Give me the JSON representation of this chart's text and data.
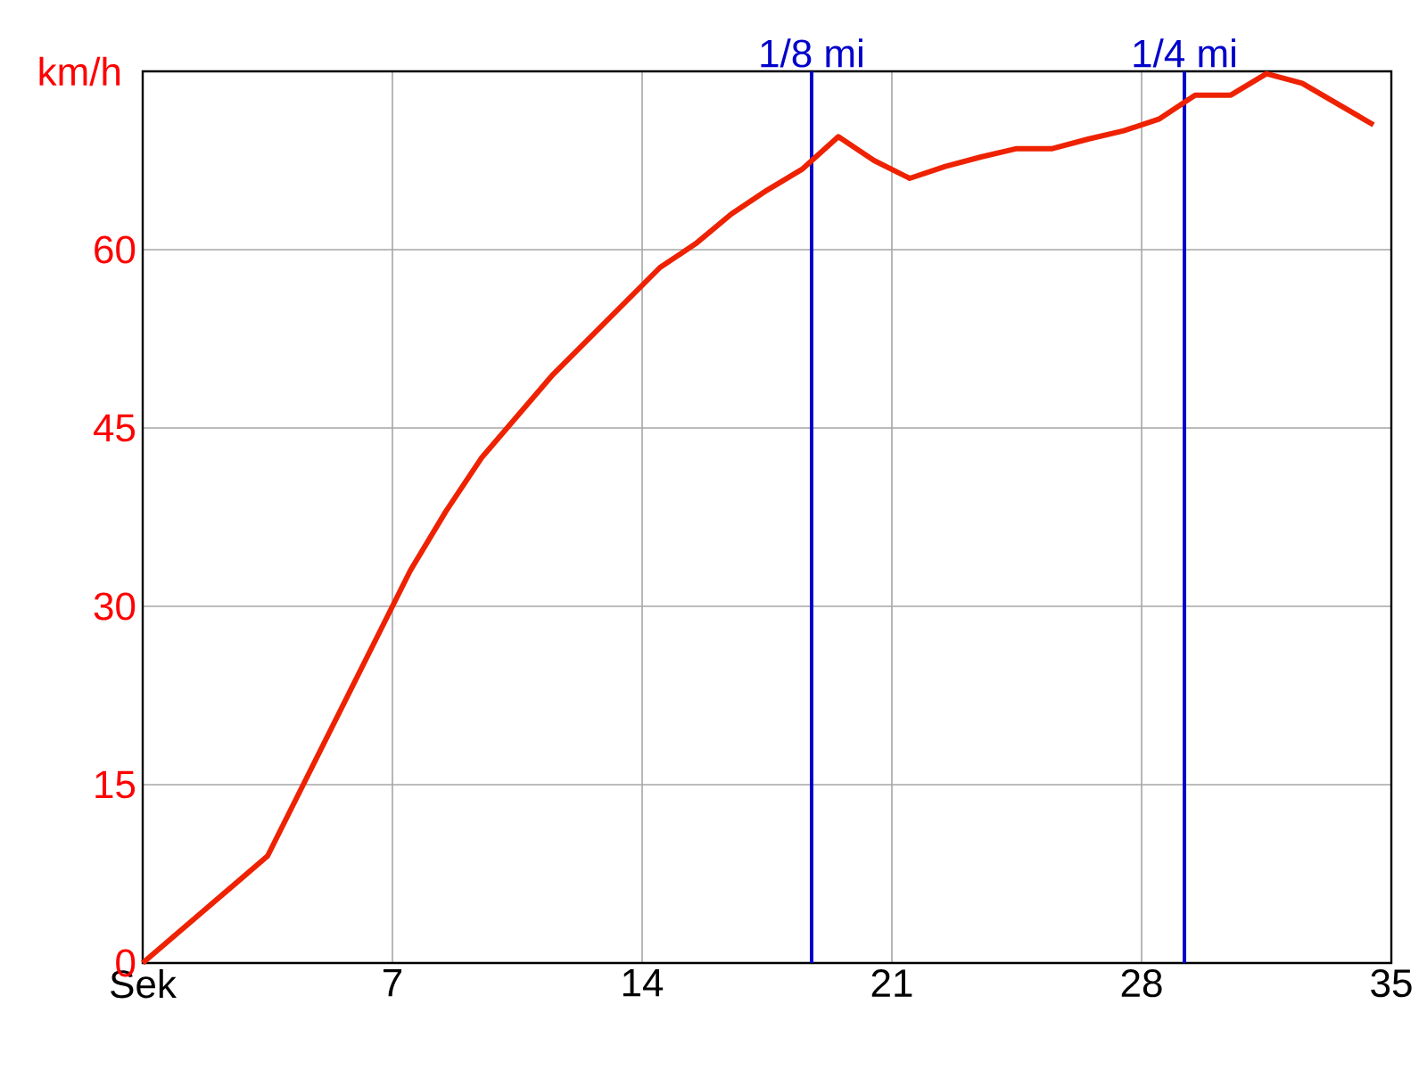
{
  "chart_data": {
    "type": "line",
    "ylabel": "km/h",
    "color": "#ee2200",
    "x": [
      0,
      3.5,
      4.5,
      5.5,
      6.5,
      7.5,
      8.5,
      9.5,
      10.5,
      11.5,
      12.5,
      13.5,
      14.5,
      15.5,
      16.5,
      17.5,
      18.5,
      19.5,
      20.5,
      21.5,
      22.5,
      23.5,
      24.5,
      25.5,
      26.5,
      27.5,
      28.5,
      29.5,
      30.5,
      31.5,
      32.5,
      34.5
    ],
    "values": [
      0,
      9,
      15,
      21,
      27,
      33,
      38,
      42.5,
      46,
      49.5,
      52.5,
      55.5,
      58.5,
      60.5,
      63,
      65,
      66.8,
      69.5,
      67.5,
      66,
      67,
      67.8,
      68.5,
      68.5,
      69.3,
      70,
      71,
      73,
      73,
      74.8,
      74,
      70.5
    ],
    "xlim": [
      0,
      35
    ],
    "ylim": [
      0,
      75
    ],
    "xticks": [
      {
        "value": 0,
        "label": "Sek"
      },
      7,
      14,
      21,
      28,
      35
    ],
    "yticks": [
      0,
      15,
      30,
      45,
      60
    ],
    "grid": true,
    "marker": "none",
    "line_style": "solid",
    "ref_lines": [
      {
        "axis": "x",
        "value": 18.75,
        "label": "1/8 mi",
        "color": "#0000cc"
      },
      {
        "axis": "x",
        "value": 29.2,
        "label": "1/4 mi",
        "color": "#0000cc"
      }
    ]
  }
}
